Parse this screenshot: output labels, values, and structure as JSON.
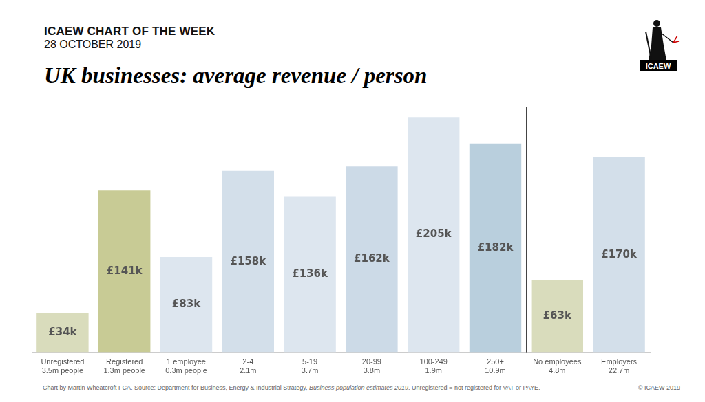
{
  "chart_data": {
    "type": "bar",
    "title": "UK businesses: average revenue / person",
    "annotations": {
      "heading": "ICAEW CHART OF THE WEEK",
      "date": "28 OCTOBER 2019",
      "logo": "ICAEW",
      "source": [
        "Chart by Martin Wheatcroft FCA.  Source: Department for Business, Energy & Industrial Strategy, ",
        "Business population estimates 2019",
        ".  Unregistered = not registered for VAT or PAYE."
      ],
      "copyright": "© ICAEW 2019"
    },
    "categories": [
      [
        "Unregistered",
        "3.5m people"
      ],
      [
        "Registered",
        "1.3m people"
      ],
      [
        "1 employee",
        "0.3m people"
      ],
      [
        "2-4",
        "2.1m"
      ],
      [
        "5-19",
        "3.7m"
      ],
      [
        "20-99",
        "3.8m"
      ],
      [
        "100-249",
        "1.9m"
      ],
      [
        "250+",
        "10.9m"
      ],
      [
        "No employees",
        "4.8m"
      ],
      [
        "Employers",
        "22.7m"
      ]
    ],
    "values": [
      34,
      141,
      83,
      158,
      136,
      162,
      205,
      182,
      63,
      170
    ],
    "value_labels": [
      "£34k",
      "£141k",
      "£83k",
      "£158k",
      "£136k",
      "£162k",
      "£205k",
      "£182k",
      "£63k",
      "£170k"
    ],
    "colors": [
      "#d9dcbc",
      "#c8cb95",
      "#dde6ef",
      "#d3dfea",
      "#dde6ef",
      "#ccdae7",
      "#dde6ef",
      "#b9cfdd",
      "#d9dcbc",
      "#d3dfea"
    ],
    "ylim": [
      0,
      210
    ],
    "data_labels": true,
    "tick_labels": "x",
    "grid": false
  }
}
